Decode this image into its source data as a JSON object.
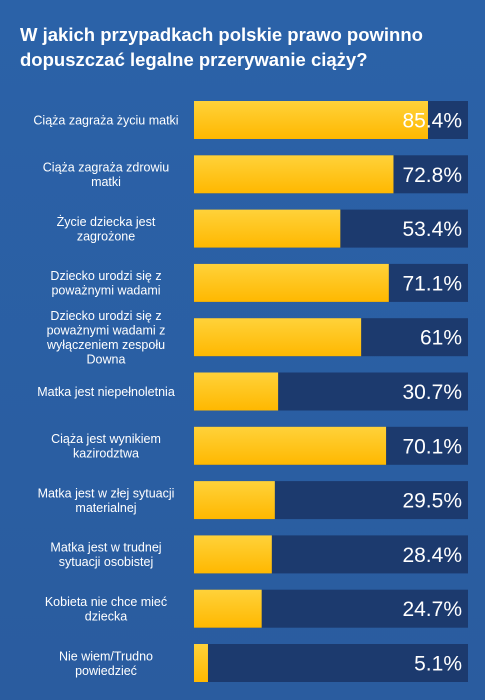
{
  "chart_data": {
    "type": "bar",
    "orientation": "horizontal",
    "title": "W jakich przypadkach polskie prawo powinno dopuszczać legalne przerywanie ciąży?",
    "categories": [
      "Ciąża zagraża życiu matki",
      "Ciąża zagraża zdrowiu matki",
      "Życie dziecka jest zagrożone",
      "Dziecko urodzi się z poważnymi wadami",
      "Dziecko urodzi się z poważnymi wadami z wyłączeniem zespołu Downa",
      "Matka jest niepełnoletnia",
      "Ciąża jest wynikiem kazirodztwa",
      "Matka jest w złej sytuacji materialnej",
      "Matka jest w trudnej sytuacji osobistej",
      "Kobieta nie chce mieć dziecka",
      "Nie wiem/Trudno powiedzieć"
    ],
    "category_lines": [
      [
        "Ciąża zagraża życiu matki"
      ],
      [
        "Ciąża zagraża zdrowiu",
        "matki"
      ],
      [
        "Życie dziecka jest",
        "zagrożone"
      ],
      [
        "Dziecko urodzi się z",
        "poważnymi wadami"
      ],
      [
        "Dziecko urodzi się z",
        "poważnymi wadami z",
        "wyłączeniem zespołu",
        "Downa"
      ],
      [
        "Matka jest niepełnoletnia"
      ],
      [
        "Ciąża jest wynikiem",
        "kazirodztwa"
      ],
      [
        "Matka jest w złej sytuacji",
        "materialnej"
      ],
      [
        "Matka jest w trudnej",
        "sytuacji osobistej"
      ],
      [
        "Kobieta nie chce mieć",
        "dziecka"
      ],
      [
        "Nie wiem/Trudno",
        "powiedzieć"
      ]
    ],
    "values": [
      85.4,
      72.8,
      53.4,
      71.1,
      61,
      30.7,
      70.1,
      29.5,
      28.4,
      24.7,
      5.1
    ],
    "value_labels": [
      "85.4%",
      "72.8%",
      "53.4%",
      "71.1%",
      "61%",
      "30.7%",
      "70.1%",
      "29.5%",
      "28.4%",
      "24.7%",
      "5.1%"
    ],
    "xlim": [
      0,
      100
    ],
    "unit": "%",
    "grid": false,
    "legend": "none",
    "colors": {
      "bar_fill": "#ffb800",
      "bar_highlight": "#ffd23a",
      "bar_track": "#1c3a6e",
      "background": "#2a5ea4",
      "text": "#ffffff"
    }
  }
}
